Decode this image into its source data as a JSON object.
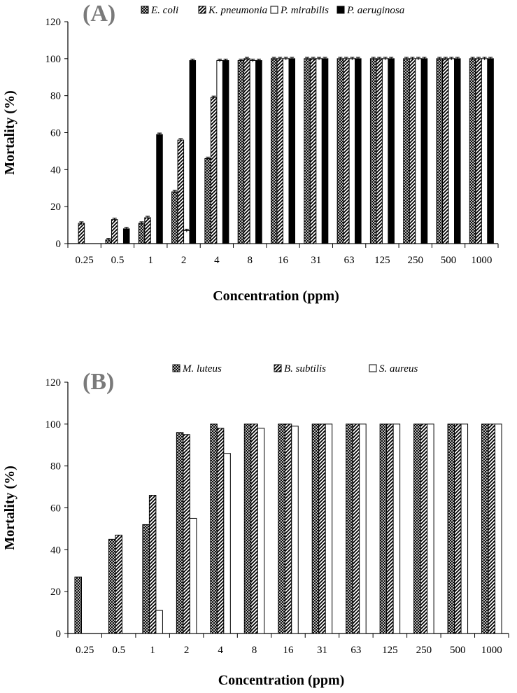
{
  "chart_data": [
    {
      "type": "bar",
      "panel_label": "(A)",
      "categories": [
        "0.25",
        "0.5",
        "1",
        "2",
        "4",
        "8",
        "16",
        "31",
        "63",
        "125",
        "250",
        "500",
        "1000"
      ],
      "xlabel": "Concentration  (ppm)",
      "ylabel": "Mortality (%)",
      "ylim": [
        0,
        120
      ],
      "yticks": [
        0,
        20,
        40,
        60,
        80,
        100,
        120
      ],
      "grid": false,
      "legend_position": "top",
      "error_bars": true,
      "series": [
        {
          "name": "E. coli",
          "pattern": "crosshatch",
          "values": [
            0,
            2,
            11,
            28,
            46,
            99,
            100,
            100,
            100,
            100,
            100,
            100,
            100
          ]
        },
        {
          "name": "K. pneumonia",
          "pattern": "diagonal",
          "values": [
            11,
            13,
            14,
            56,
            79,
            100,
            100,
            100,
            100,
            100,
            100,
            100,
            100
          ]
        },
        {
          "name": "P. mirabilis",
          "pattern": "white",
          "values": [
            0,
            0,
            0,
            7,
            99,
            99,
            100,
            100,
            100,
            100,
            100,
            100,
            100
          ]
        },
        {
          "name": "P. aeruginosa",
          "pattern": "black",
          "values": [
            0,
            8,
            59,
            99,
            99,
            99,
            100,
            100,
            100,
            100,
            100,
            100,
            100
          ]
        }
      ]
    },
    {
      "type": "bar",
      "panel_label": "(B)",
      "categories": [
        "0.25",
        "0.5",
        "1",
        "2",
        "4",
        "8",
        "16",
        "31",
        "63",
        "125",
        "250",
        "500",
        "1000"
      ],
      "xlabel": "Concentration  (ppm)",
      "ylabel": "Mortality (%)",
      "ylim": [
        0,
        120
      ],
      "yticks": [
        0,
        20,
        40,
        60,
        80,
        100,
        120
      ],
      "grid": false,
      "legend_position": "top",
      "error_bars": false,
      "series": [
        {
          "name": "M. luteus",
          "pattern": "crosshatch",
          "values": [
            27,
            45,
            52,
            96,
            100,
            100,
            100,
            100,
            100,
            100,
            100,
            100,
            100
          ]
        },
        {
          "name": "B. subtilis",
          "pattern": "diagonal",
          "values": [
            0,
            47,
            66,
            95,
            98,
            100,
            100,
            100,
            100,
            100,
            100,
            100,
            100
          ]
        },
        {
          "name": "S. aureus",
          "pattern": "white",
          "values": [
            0,
            0,
            11,
            55,
            86,
            98,
            99,
            100,
            100,
            100,
            100,
            100,
            100
          ]
        }
      ]
    }
  ],
  "colors": {
    "ink": "#000000",
    "panel_letter": "#7a7a7a",
    "background": "#ffffff"
  }
}
